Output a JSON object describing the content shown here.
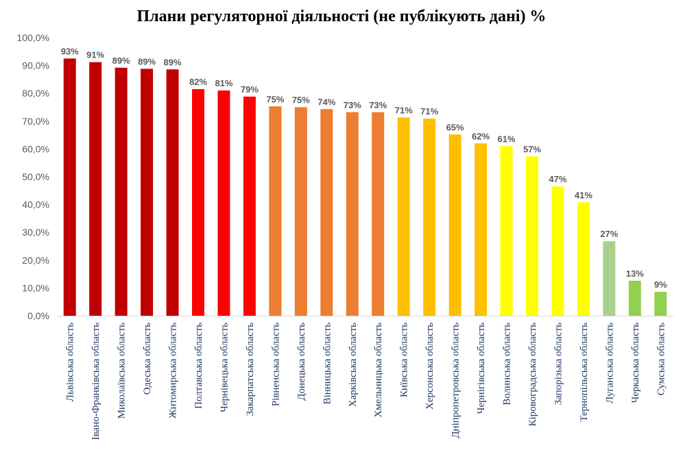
{
  "chart_data": {
    "type": "bar",
    "title": "Плани регуляторної діяльності (не публікують дані) %",
    "xlabel": "",
    "ylabel": "",
    "ylim": [
      0,
      100
    ],
    "y_ticks": [
      "0,0%",
      "10,0%",
      "20,0%",
      "30,0%",
      "40,0%",
      "50,0%",
      "60,0%",
      "70,0%",
      "80,0%",
      "90,0%",
      "100,0%"
    ],
    "grid": false,
    "legend": "none",
    "categories": [
      "Львівська область",
      "Івано-Франківська область",
      "Миколаївська область",
      "Одеська область",
      "Житомирська область",
      "Полтавська область",
      "Чернівецька область",
      "Закарпатська область",
      "Рівненська область",
      "Донецька область",
      "Вінницька область",
      "Харківська область",
      "Хмельницька область",
      "Київська область",
      "Херсонська область",
      "Дніпропетровська область",
      "Чернігівська область",
      "Волинська область",
      "Кіровоградська область",
      "Запорізька область",
      "Тернопільська область",
      "Луганська область",
      "Черкаська область",
      "Сумська область"
    ],
    "values": [
      92.5,
      91.2,
      89.2,
      88.8,
      88.6,
      81.5,
      81.0,
      78.8,
      75.3,
      75.0,
      74.3,
      73.2,
      73.2,
      71.3,
      70.9,
      65.2,
      62.0,
      61.0,
      57.3,
      46.5,
      40.8,
      26.8,
      12.6,
      8.6
    ],
    "data_labels": [
      "93%",
      "91%",
      "89%",
      "89%",
      "89%",
      "82%",
      "81%",
      "79%",
      "75%",
      "75%",
      "74%",
      "73%",
      "73%",
      "71%",
      "71%",
      "65%",
      "62%",
      "61%",
      "57%",
      "47%",
      "41%",
      "27%",
      "13%",
      "9%"
    ],
    "colors": [
      "#c00000",
      "#c00000",
      "#c00000",
      "#c00000",
      "#c00000",
      "#ff0000",
      "#ff0000",
      "#ff0000",
      "#ed7d31",
      "#ed7d31",
      "#ed7d31",
      "#ed7d31",
      "#ed7d31",
      "#ffc000",
      "#ffc000",
      "#ffc000",
      "#ffc000",
      "#ffff00",
      "#ffff00",
      "#ffff00",
      "#ffff00",
      "#a9d18e",
      "#92d050",
      "#92d050"
    ],
    "axis_color": "#d9d9d9"
  }
}
